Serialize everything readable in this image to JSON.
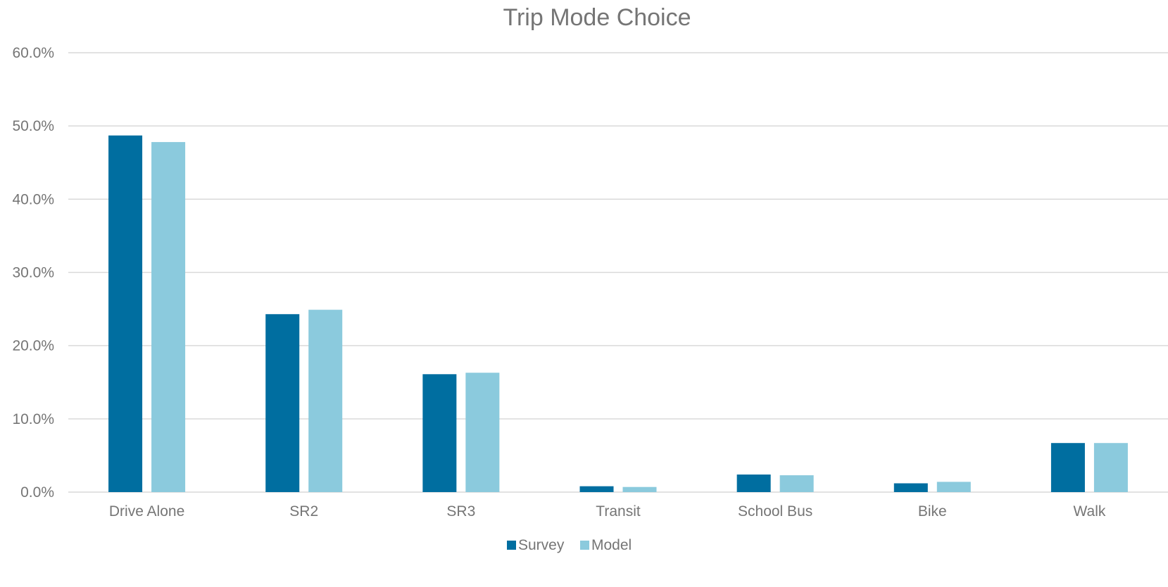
{
  "chart_data": {
    "type": "bar",
    "title": "Trip Mode Choice",
    "xlabel": "",
    "ylabel": "",
    "categories": [
      "Drive Alone",
      "SR2",
      "SR3",
      "Transit",
      "School Bus",
      "Bike",
      "Walk"
    ],
    "series": [
      {
        "name": "Survey",
        "color": "#006EA0",
        "values": [
          48.7,
          24.3,
          16.1,
          0.8,
          2.4,
          1.2,
          6.7
        ]
      },
      {
        "name": "Model",
        "color": "#8BCADD",
        "values": [
          47.8,
          24.9,
          16.3,
          0.7,
          2.3,
          1.4,
          6.7
        ]
      }
    ],
    "ylim": [
      0,
      60
    ],
    "yticks": [
      0,
      10,
      20,
      30,
      40,
      50,
      60
    ],
    "ytick_labels": [
      "0.0%",
      "10.0%",
      "20.0%",
      "30.0%",
      "40.0%",
      "50.0%",
      "60.0%"
    ],
    "grid": true,
    "legend_position": "bottom"
  }
}
